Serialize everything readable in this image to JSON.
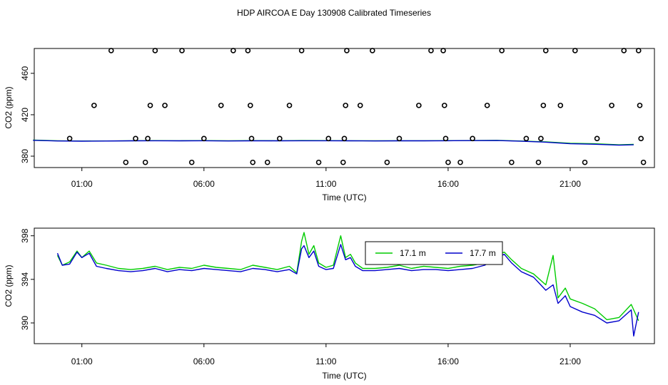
{
  "title": "HDP AIRCOA E  Day 130908  Calibrated Timeseries",
  "colors": {
    "green": "#00cc00",
    "blue": "#0000cc",
    "axis": "#000000"
  },
  "chart_data": [
    {
      "type": "line",
      "panel": "top",
      "xlabel": "Time (UTC)",
      "ylabel": "CO2 (ppm)",
      "x_ticks": [
        "01:00",
        "06:00",
        "11:00",
        "16:00",
        "21:00"
      ],
      "x_tick_hours": [
        1,
        6,
        11,
        16,
        21
      ],
      "y_ticks": [
        380,
        420,
        460
      ],
      "xlim": [
        -0.95,
        24.45
      ],
      "ylim": [
        369,
        484
      ],
      "legend": "none",
      "series": [
        {
          "color": "green",
          "points": [
            [
              -1,
              395.5
            ],
            [
              0,
              394.8
            ],
            [
              1,
              394.6
            ],
            [
              2,
              394.7
            ],
            [
              3,
              394.9
            ],
            [
              4,
              395.0
            ],
            [
              5,
              394.9
            ],
            [
              6,
              395.0
            ],
            [
              7,
              394.8
            ],
            [
              8,
              395.0
            ],
            [
              9,
              394.9
            ],
            [
              10,
              395.1
            ],
            [
              11,
              395.0
            ],
            [
              12,
              394.9
            ],
            [
              13,
              394.8
            ],
            [
              14,
              394.9
            ],
            [
              15,
              394.9
            ],
            [
              16,
              395.0
            ],
            [
              17,
              395.1
            ],
            [
              18,
              395.3
            ],
            [
              19,
              394.6
            ],
            [
              20,
              393.8
            ],
            [
              21,
              392.5
            ],
            [
              22,
              392.0
            ],
            [
              23,
              391.0
            ],
            [
              23.6,
              391.4
            ]
          ]
        },
        {
          "color": "blue",
          "points": [
            [
              -1,
              395.3
            ],
            [
              0,
              394.7
            ],
            [
              1,
              394.5
            ],
            [
              2,
              394.6
            ],
            [
              3,
              394.8
            ],
            [
              4,
              394.9
            ],
            [
              5,
              394.8
            ],
            [
              6,
              394.9
            ],
            [
              7,
              394.7
            ],
            [
              8,
              394.8
            ],
            [
              9,
              394.8
            ],
            [
              10,
              394.9
            ],
            [
              11,
              394.9
            ],
            [
              12,
              394.8
            ],
            [
              13,
              394.7
            ],
            [
              14,
              394.8
            ],
            [
              15,
              394.8
            ],
            [
              16,
              394.9
            ],
            [
              17,
              395.0
            ],
            [
              18,
              395.1
            ],
            [
              19,
              394.4
            ],
            [
              20,
              393.5
            ],
            [
              21,
              392.0
            ],
            [
              22,
              391.5
            ],
            [
              23,
              390.6
            ],
            [
              23.6,
              391.0
            ]
          ]
        }
      ],
      "markers": {
        "style": "open-circle",
        "points": [
          [
            0.5,
            397
          ],
          [
            1.5,
            429
          ],
          [
            2.2,
            482
          ],
          [
            2.8,
            374
          ],
          [
            3.2,
            397
          ],
          [
            3.6,
            374
          ],
          [
            3.7,
            397
          ],
          [
            3.8,
            429
          ],
          [
            4.0,
            482
          ],
          [
            4.4,
            429
          ],
          [
            5.1,
            482
          ],
          [
            5.5,
            374
          ],
          [
            6.0,
            397
          ],
          [
            6.7,
            429
          ],
          [
            7.2,
            482
          ],
          [
            7.8,
            482
          ],
          [
            7.9,
            429
          ],
          [
            7.95,
            397
          ],
          [
            8.0,
            374
          ],
          [
            8.6,
            374
          ],
          [
            9.1,
            397
          ],
          [
            9.5,
            429
          ],
          [
            10.0,
            482
          ],
          [
            10.7,
            374
          ],
          [
            11.1,
            397
          ],
          [
            11.7,
            374
          ],
          [
            11.75,
            397
          ],
          [
            11.8,
            429
          ],
          [
            11.85,
            482
          ],
          [
            12.4,
            429
          ],
          [
            12.9,
            482
          ],
          [
            13.5,
            374
          ],
          [
            14.0,
            397
          ],
          [
            14.8,
            429
          ],
          [
            15.3,
            482
          ],
          [
            15.8,
            482
          ],
          [
            15.85,
            429
          ],
          [
            15.9,
            397
          ],
          [
            16.0,
            374
          ],
          [
            16.5,
            374
          ],
          [
            17.0,
            397
          ],
          [
            17.6,
            429
          ],
          [
            18.2,
            482
          ],
          [
            18.6,
            374
          ],
          [
            19.2,
            397
          ],
          [
            19.7,
            374
          ],
          [
            19.8,
            397
          ],
          [
            19.9,
            429
          ],
          [
            20.0,
            482
          ],
          [
            20.6,
            429
          ],
          [
            21.2,
            482
          ],
          [
            21.6,
            374
          ],
          [
            22.1,
            397
          ],
          [
            22.7,
            429
          ],
          [
            23.2,
            482
          ],
          [
            23.8,
            482
          ],
          [
            23.85,
            429
          ],
          [
            23.9,
            397
          ],
          [
            24.0,
            374
          ]
        ]
      }
    },
    {
      "type": "line",
      "panel": "bottom",
      "xlabel": "Time (UTC)",
      "ylabel": "CO2 (ppm)",
      "x_ticks": [
        "01:00",
        "06:00",
        "11:00",
        "16:00",
        "21:00"
      ],
      "x_tick_hours": [
        1,
        6,
        11,
        16,
        21
      ],
      "y_ticks": [
        390,
        394,
        398
      ],
      "xlim": [
        -0.95,
        24.45
      ],
      "ylim": [
        388.1,
        398.7
      ],
      "legend": "top-center",
      "series": [
        {
          "name": "17.1 m",
          "color": "green",
          "points": [
            [
              0,
              396.2
            ],
            [
              0.2,
              395.3
            ],
            [
              0.5,
              395.6
            ],
            [
              0.8,
              396.6
            ],
            [
              1.0,
              396.0
            ],
            [
              1.3,
              396.6
            ],
            [
              1.6,
              395.5
            ],
            [
              2.0,
              395.3
            ],
            [
              2.5,
              395.0
            ],
            [
              3.0,
              394.9
            ],
            [
              3.5,
              395.0
            ],
            [
              4.0,
              395.2
            ],
            [
              4.5,
              394.9
            ],
            [
              5.0,
              395.1
            ],
            [
              5.5,
              395.0
            ],
            [
              6.0,
              395.3
            ],
            [
              6.5,
              395.1
            ],
            [
              7.0,
              395.0
            ],
            [
              7.5,
              394.9
            ],
            [
              8.0,
              395.3
            ],
            [
              8.5,
              395.1
            ],
            [
              9.0,
              394.9
            ],
            [
              9.5,
              395.2
            ],
            [
              9.8,
              394.6
            ],
            [
              10.0,
              397.5
            ],
            [
              10.1,
              398.3
            ],
            [
              10.3,
              396.3
            ],
            [
              10.5,
              397.1
            ],
            [
              10.7,
              395.5
            ],
            [
              11.0,
              395.1
            ],
            [
              11.3,
              395.3
            ],
            [
              11.6,
              398.0
            ],
            [
              11.8,
              396.0
            ],
            [
              12.0,
              396.3
            ],
            [
              12.2,
              395.5
            ],
            [
              12.5,
              395.0
            ],
            [
              13.0,
              395.0
            ],
            [
              13.5,
              395.1
            ],
            [
              14.0,
              395.3
            ],
            [
              14.5,
              395.0
            ],
            [
              15.0,
              395.2
            ],
            [
              15.5,
              395.1
            ],
            [
              16.0,
              395.0
            ],
            [
              16.5,
              395.2
            ],
            [
              17.0,
              395.3
            ],
            [
              17.5,
              395.5
            ],
            [
              18.0,
              396.2
            ],
            [
              18.3,
              396.5
            ],
            [
              18.6,
              395.8
            ],
            [
              19.0,
              395.0
            ],
            [
              19.5,
              394.5
            ],
            [
              20.0,
              393.5
            ],
            [
              20.3,
              396.2
            ],
            [
              20.5,
              392.3
            ],
            [
              20.8,
              393.2
            ],
            [
              21.0,
              392.2
            ],
            [
              21.5,
              391.8
            ],
            [
              22.0,
              391.3
            ],
            [
              22.5,
              390.3
            ],
            [
              23.0,
              390.5
            ],
            [
              23.5,
              391.7
            ],
            [
              23.8,
              390.2
            ]
          ]
        },
        {
          "name": "17.7 m",
          "color": "blue",
          "points": [
            [
              0,
              396.4
            ],
            [
              0.2,
              395.3
            ],
            [
              0.5,
              395.4
            ],
            [
              0.8,
              396.5
            ],
            [
              1.0,
              396.0
            ],
            [
              1.3,
              396.4
            ],
            [
              1.6,
              395.2
            ],
            [
              2.0,
              395.0
            ],
            [
              2.5,
              394.8
            ],
            [
              3.0,
              394.7
            ],
            [
              3.5,
              394.8
            ],
            [
              4.0,
              395.0
            ],
            [
              4.5,
              394.7
            ],
            [
              5.0,
              394.9
            ],
            [
              5.5,
              394.8
            ],
            [
              6.0,
              395.0
            ],
            [
              6.5,
              394.9
            ],
            [
              7.0,
              394.8
            ],
            [
              7.5,
              394.7
            ],
            [
              8.0,
              395.0
            ],
            [
              8.5,
              394.9
            ],
            [
              9.0,
              394.7
            ],
            [
              9.5,
              394.9
            ],
            [
              9.8,
              394.5
            ],
            [
              10.0,
              396.8
            ],
            [
              10.1,
              397.1
            ],
            [
              10.3,
              396.0
            ],
            [
              10.5,
              396.6
            ],
            [
              10.7,
              395.2
            ],
            [
              11.0,
              394.9
            ],
            [
              11.3,
              395.0
            ],
            [
              11.6,
              397.2
            ],
            [
              11.8,
              395.8
            ],
            [
              12.0,
              396.0
            ],
            [
              12.2,
              395.2
            ],
            [
              12.5,
              394.8
            ],
            [
              13.0,
              394.8
            ],
            [
              13.5,
              394.9
            ],
            [
              14.0,
              395.0
            ],
            [
              14.5,
              394.8
            ],
            [
              15.0,
              394.9
            ],
            [
              15.5,
              394.9
            ],
            [
              16.0,
              394.8
            ],
            [
              16.5,
              394.9
            ],
            [
              17.0,
              395.0
            ],
            [
              17.5,
              395.3
            ],
            [
              18.0,
              396.0
            ],
            [
              18.3,
              396.3
            ],
            [
              18.6,
              395.5
            ],
            [
              19.0,
              394.7
            ],
            [
              19.5,
              394.2
            ],
            [
              20.0,
              393.0
            ],
            [
              20.3,
              393.5
            ],
            [
              20.5,
              391.8
            ],
            [
              20.8,
              392.5
            ],
            [
              21.0,
              391.5
            ],
            [
              21.5,
              391.0
            ],
            [
              22.0,
              390.7
            ],
            [
              22.5,
              390.0
            ],
            [
              23.0,
              390.2
            ],
            [
              23.5,
              391.2
            ],
            [
              23.6,
              388.8
            ],
            [
              23.8,
              391.0
            ]
          ]
        }
      ]
    }
  ]
}
